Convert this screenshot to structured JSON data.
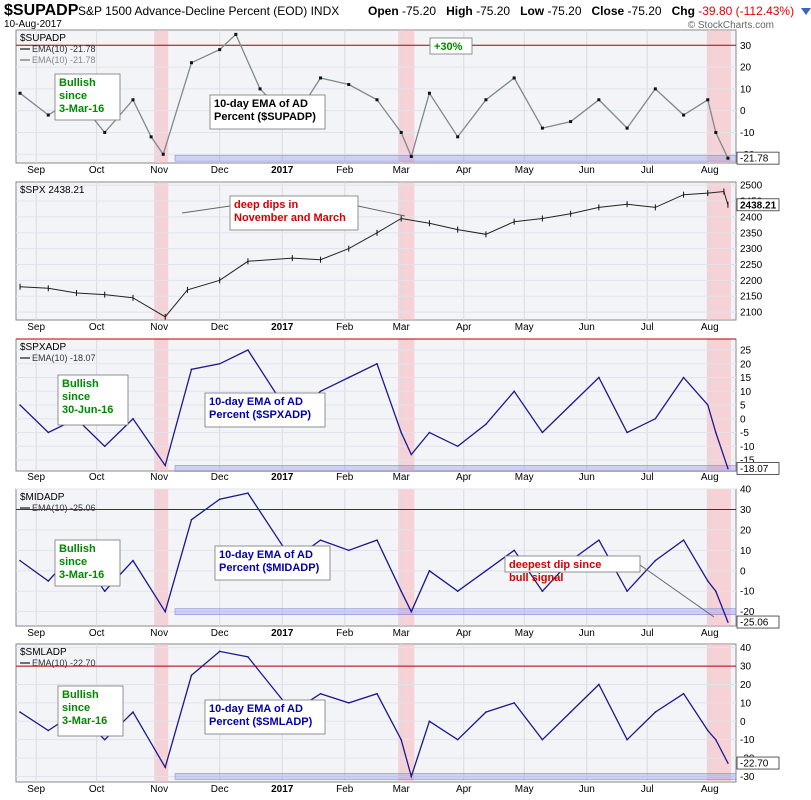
{
  "header": {
    "symbol": "$SUPADP",
    "description": "S&P 1500 Advance-Decline Percent (EOD)",
    "exchange": "INDX",
    "date": "10-Aug-2017",
    "open_label": "Open",
    "open": "-75.20",
    "high_label": "High",
    "high": "-75.20",
    "low_label": "Low",
    "low": "-75.20",
    "close_label": "Close",
    "close": "-75.20",
    "chg_label": "Chg",
    "chg": "-39.80 (-112.43%)",
    "copyright": "© StockCharts.com"
  },
  "chart_data": [
    {
      "type": "line",
      "title": "$SUPADP",
      "legend": [
        "EMA(10) -21.78",
        "EMA(10) -21.78"
      ],
      "annotations": [
        "Bullish since 3-Mar-16",
        "10-day EMA of AD Percent ($SUPADP)",
        "+30%"
      ],
      "last_value_label": "-21.78",
      "yticks": [
        30,
        20,
        10,
        0,
        -10,
        -20
      ],
      "ylim": [
        -24,
        37
      ],
      "reference_lines": [
        30,
        -21.78
      ],
      "x_months": [
        "Sep",
        "Oct",
        "Nov",
        "Dec",
        "2017",
        "Feb",
        "Mar",
        "Apr",
        "May",
        "Jun",
        "Jul",
        "Aug"
      ],
      "x_range": [
        "2016-08-22",
        "2017-08-14"
      ],
      "x": [
        "2016-08-24",
        "2016-09-07",
        "2016-09-21",
        "2016-10-05",
        "2016-10-19",
        "2016-10-28",
        "2016-11-03",
        "2016-11-17",
        "2016-12-01",
        "2016-12-09",
        "2016-12-21",
        "2017-01-06",
        "2017-01-20",
        "2017-02-03",
        "2017-02-17",
        "2017-03-01",
        "2017-03-06",
        "2017-03-15",
        "2017-03-29",
        "2017-04-12",
        "2017-04-26",
        "2017-05-10",
        "2017-05-24",
        "2017-06-07",
        "2017-06-21",
        "2017-07-05",
        "2017-07-19",
        "2017-07-31",
        "2017-08-04",
        "2017-08-10"
      ],
      "values": [
        8,
        -2,
        6,
        -10,
        5,
        -12,
        -20,
        22,
        28,
        35,
        10,
        -5,
        15,
        12,
        5,
        -10,
        -21,
        8,
        -12,
        5,
        15,
        -8,
        -5,
        5,
        -8,
        10,
        -2,
        5,
        -10,
        -21.78
      ]
    },
    {
      "type": "line",
      "title": "$SPX 2438.21",
      "annotations": [
        "deep dips in November and March"
      ],
      "last_value_label": "2438.21",
      "yticks": [
        2500,
        2450,
        2400,
        2350,
        2300,
        2250,
        2200,
        2150,
        2100
      ],
      "ylim": [
        2075,
        2510
      ],
      "x_months": [
        "Sep",
        "Oct",
        "Nov",
        "Dec",
        "2017",
        "Feb",
        "Mar",
        "Apr",
        "May",
        "Jun",
        "Jul",
        "Aug"
      ],
      "x_range": [
        "2016-08-22",
        "2017-08-14"
      ],
      "x": [
        "2016-08-24",
        "2016-09-07",
        "2016-09-21",
        "2016-10-05",
        "2016-10-19",
        "2016-11-04",
        "2016-11-15",
        "2016-12-01",
        "2016-12-15",
        "2017-01-06",
        "2017-01-20",
        "2017-02-03",
        "2017-02-17",
        "2017-03-01",
        "2017-03-15",
        "2017-03-29",
        "2017-04-12",
        "2017-04-26",
        "2017-05-10",
        "2017-05-24",
        "2017-06-07",
        "2017-06-21",
        "2017-07-05",
        "2017-07-19",
        "2017-07-31",
        "2017-08-08",
        "2017-08-10"
      ],
      "values": [
        2180,
        2175,
        2160,
        2155,
        2145,
        2085,
        2170,
        2200,
        2260,
        2270,
        2265,
        2300,
        2350,
        2395,
        2380,
        2360,
        2345,
        2385,
        2395,
        2410,
        2430,
        2440,
        2430,
        2470,
        2475,
        2480,
        2438.21
      ]
    },
    {
      "type": "line",
      "title": "$SPXADP",
      "legend": [
        "EMA(10) -18.07"
      ],
      "annotations": [
        "Bullish since 30-Jun-16",
        "10-day EMA of AD Percent ($SPXADP)"
      ],
      "last_value_label": "-18.07",
      "yticks": [
        25,
        20,
        15,
        10,
        5,
        0,
        -5,
        -10,
        -15
      ],
      "ylim": [
        -19,
        29
      ],
      "reference_lines": [
        29,
        -18.07
      ],
      "x_months": [
        "Sep",
        "Oct",
        "Nov",
        "Dec",
        "2017",
        "Feb",
        "Mar",
        "Apr",
        "May",
        "Jun",
        "Jul",
        "Aug"
      ],
      "x_range": [
        "2016-08-22",
        "2017-08-14"
      ],
      "x": [
        "2016-08-24",
        "2016-09-07",
        "2016-09-21",
        "2016-10-05",
        "2016-10-19",
        "2016-11-04",
        "2016-11-17",
        "2016-12-01",
        "2016-12-15",
        "2017-01-06",
        "2017-01-20",
        "2017-02-03",
        "2017-02-17",
        "2017-03-01",
        "2017-03-06",
        "2017-03-15",
        "2017-03-29",
        "2017-04-12",
        "2017-04-26",
        "2017-05-10",
        "2017-05-24",
        "2017-06-07",
        "2017-06-21",
        "2017-07-05",
        "2017-07-19",
        "2017-07-31",
        "2017-08-04",
        "2017-08-10"
      ],
      "values": [
        5,
        -5,
        0,
        -10,
        0,
        -17,
        18,
        20,
        25,
        0,
        10,
        15,
        20,
        -5,
        -13,
        -5,
        -10,
        -2,
        10,
        -5,
        5,
        15,
        -5,
        0,
        15,
        5,
        -5,
        -18.07
      ]
    },
    {
      "type": "line",
      "title": "$MIDADP",
      "legend": [
        "EMA(10) -25.06"
      ],
      "annotations": [
        "Bullish since 3-Mar-16",
        "10-day EMA of AD Percent ($MIDADP)",
        "deepest dip since bull signal"
      ],
      "last_value_label": "-25.06",
      "yticks": [
        40,
        30,
        20,
        10,
        0,
        -10,
        -20
      ],
      "ylim": [
        -27,
        40
      ],
      "reference_lines": [
        30,
        -20
      ],
      "x_months": [
        "Sep",
        "Oct",
        "Nov",
        "Dec",
        "2017",
        "Feb",
        "Mar",
        "Apr",
        "May",
        "Jun",
        "Jul",
        "Aug"
      ],
      "x_range": [
        "2016-08-22",
        "2017-08-14"
      ],
      "x": [
        "2016-08-24",
        "2016-09-07",
        "2016-09-21",
        "2016-10-05",
        "2016-10-19",
        "2016-11-04",
        "2016-11-17",
        "2016-12-01",
        "2016-12-15",
        "2017-01-06",
        "2017-01-20",
        "2017-02-03",
        "2017-02-17",
        "2017-03-01",
        "2017-03-06",
        "2017-03-15",
        "2017-03-29",
        "2017-04-12",
        "2017-04-26",
        "2017-05-10",
        "2017-05-24",
        "2017-06-07",
        "2017-06-21",
        "2017-07-05",
        "2017-07-19",
        "2017-07-31",
        "2017-08-04",
        "2017-08-10"
      ],
      "values": [
        5,
        -5,
        10,
        -10,
        5,
        -20,
        25,
        35,
        38,
        5,
        15,
        10,
        15,
        -10,
        -20,
        0,
        -10,
        0,
        10,
        -10,
        5,
        15,
        -10,
        5,
        15,
        -5,
        -10,
        -25.06
      ]
    },
    {
      "type": "line",
      "title": "$SMLADP",
      "legend": [
        "EMA(10) -22.70"
      ],
      "annotations": [
        "Bullish since 3-Mar-16",
        "10-day EMA of AD Percent ($SMLADP)"
      ],
      "last_value_label": "-22.70",
      "yticks": [
        40,
        30,
        20,
        10,
        0,
        -10,
        -20,
        -30
      ],
      "ylim": [
        -33,
        42
      ],
      "reference_lines": [
        30,
        -30
      ],
      "x_months": [
        "Sep",
        "Oct",
        "Nov",
        "Dec",
        "2017",
        "Feb",
        "Mar",
        "Apr",
        "May",
        "Jun",
        "Jul",
        "Aug"
      ],
      "x_range": [
        "2016-08-22",
        "2017-08-14"
      ],
      "x": [
        "2016-08-24",
        "2016-09-07",
        "2016-09-21",
        "2016-10-05",
        "2016-10-19",
        "2016-11-04",
        "2016-11-17",
        "2016-12-01",
        "2016-12-15",
        "2017-01-06",
        "2017-01-20",
        "2017-02-03",
        "2017-02-17",
        "2017-03-01",
        "2017-03-06",
        "2017-03-15",
        "2017-03-29",
        "2017-04-12",
        "2017-04-26",
        "2017-05-10",
        "2017-05-24",
        "2017-06-07",
        "2017-06-21",
        "2017-07-05",
        "2017-07-19",
        "2017-07-31",
        "2017-08-04",
        "2017-08-10"
      ],
      "values": [
        5,
        -5,
        5,
        -10,
        5,
        -25,
        25,
        38,
        35,
        5,
        15,
        10,
        15,
        -10,
        -30,
        0,
        -10,
        5,
        10,
        -10,
        5,
        20,
        -10,
        5,
        15,
        -5,
        -10,
        -22.7
      ]
    }
  ]
}
